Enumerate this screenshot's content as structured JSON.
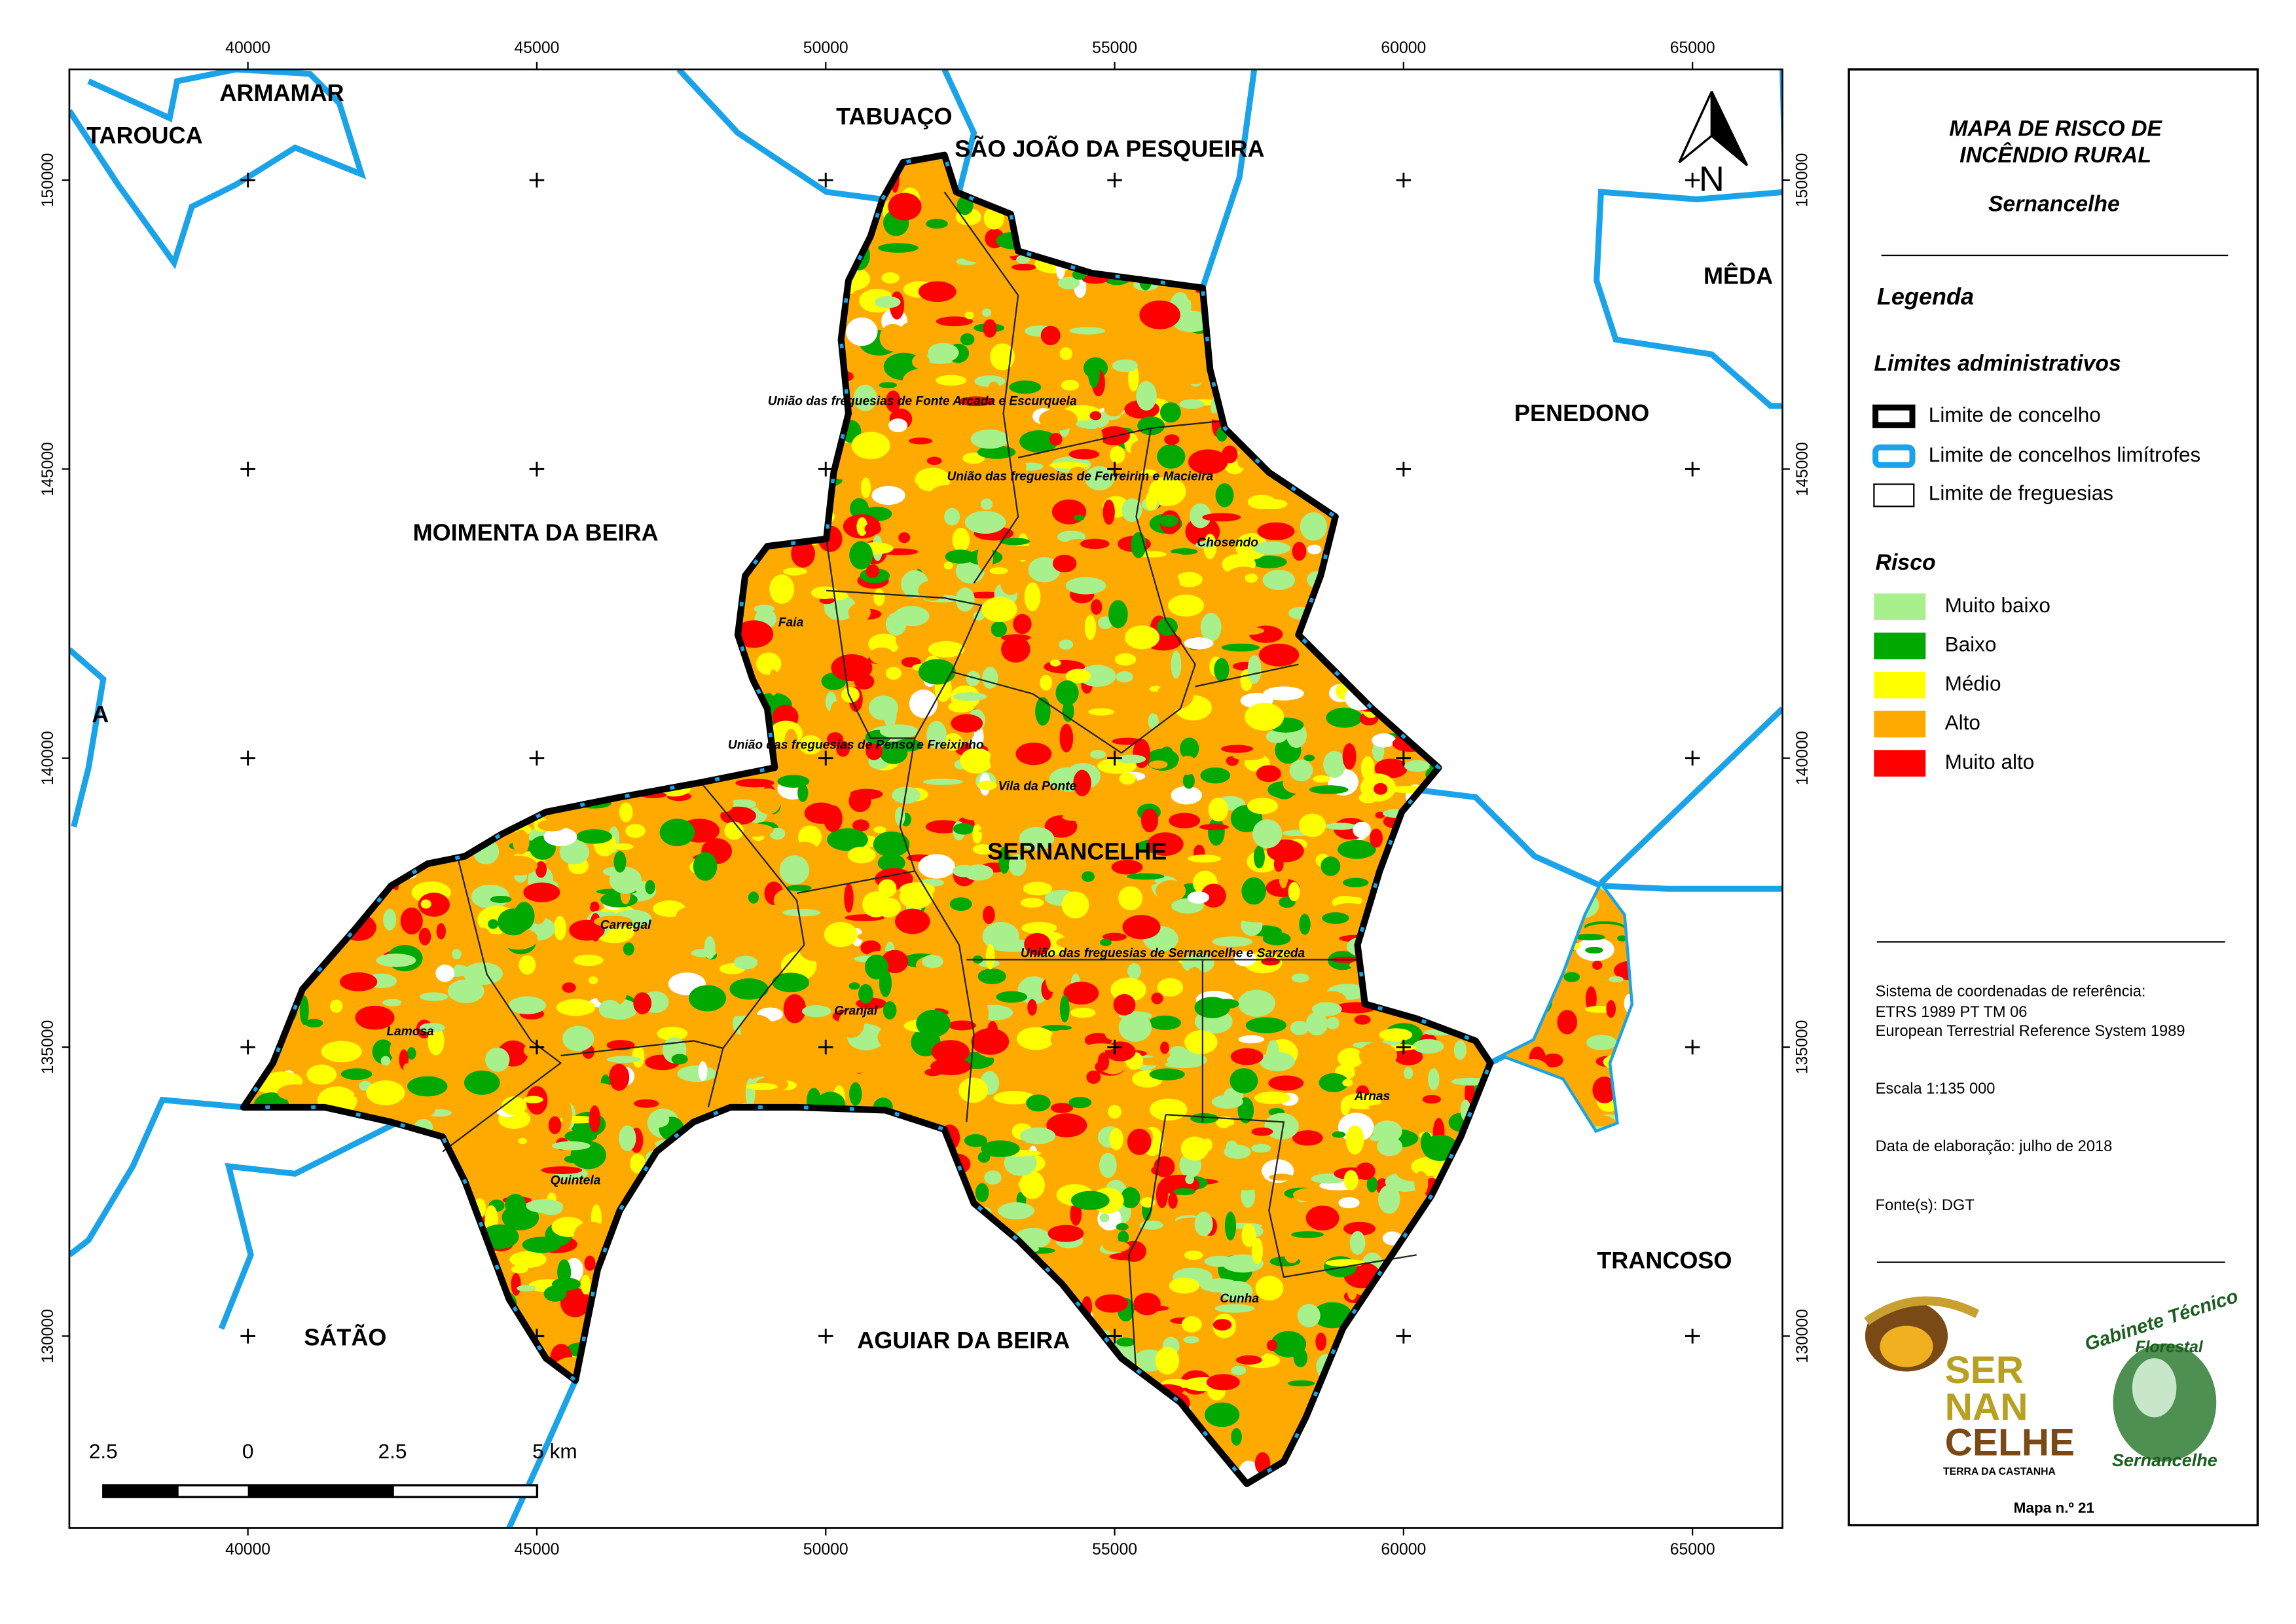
{
  "map": {
    "x_ticks": [
      40000,
      45000,
      50000,
      55000,
      60000,
      65000
    ],
    "y_ticks": [
      130000,
      135000,
      140000,
      145000,
      150000
    ],
    "north": "N",
    "municipalities": [
      "TAROUCA",
      "ARMAMAR",
      "TABUAÇO",
      "SÃO JOÃO DA PESQUEIRA",
      "MÊDA",
      "PENEDONO",
      "MOIMENTA DA BEIRA",
      "A",
      "TRANCOSO",
      "SÁTÃO",
      "AGUIAR DA BEIRA"
    ],
    "main_label": "SERNANCELHE",
    "parishes": [
      "União das freguesias de Fonte Arcada e Escurquela",
      "União das freguesias de Ferreirim e Macieira",
      "Chosendo",
      "Faia",
      "União das freguesias de Penso e Freixinho",
      "Vila da Ponte",
      "Carregal",
      "União das freguesias de Sernancelhe e Sarzeda",
      "Granjal",
      "Lamosa",
      "Arnas",
      "Quintela",
      "Cunha"
    ],
    "scale_bar": [
      "2.5",
      "0",
      "2.5",
      "5 km"
    ]
  },
  "panel": {
    "title": [
      "MAPA DE RISCO DE",
      "INCÊNDIO RURAL"
    ],
    "subtitle": "Sernancelhe",
    "legend_title": "Legenda",
    "admin_title": "Limites administrativos",
    "admin_items": [
      "Limite de concelho",
      "Limite de concelhos limítrofes",
      "Limite de freguesias"
    ],
    "risk_title": "Risco",
    "risk_items": [
      {
        "label": "Muito baixo",
        "color": "#a8f08c"
      },
      {
        "label": "Baixo",
        "color": "#00a800"
      },
      {
        "label": "Médio",
        "color": "#ffff00"
      },
      {
        "label": "Alto",
        "color": "#ffaa00"
      },
      {
        "label": "Muito alto",
        "color": "#ff0000"
      }
    ],
    "info": [
      "Sistema de coordenadas de referência:",
      "ETRS 1989 PT TM 06",
      "European Terrestrial Reference System 1989",
      "Escala 1:135 000",
      "Data de elaboração: julho de 2018",
      "Fonte(s): DGT"
    ],
    "logo_left": [
      "SER",
      "NAN",
      "CELHE",
      "TERRA DA CASTANHA"
    ],
    "logo_right": [
      "Gabinete Técnico",
      "Florestal",
      "Sernancelhe"
    ],
    "map_number": "Mapa n.º 21"
  }
}
